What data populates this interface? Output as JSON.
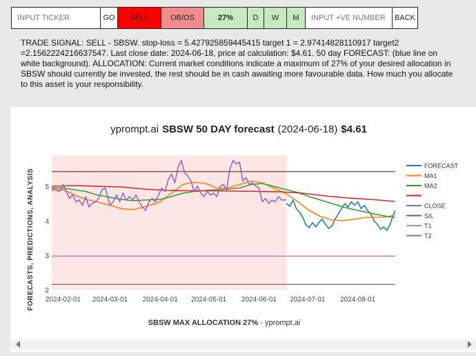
{
  "toolbar": {
    "ticker_placeholder": "INPUT TICKER",
    "go_label": "GO",
    "sell_label": "SELL",
    "obos_label": "OB/OS",
    "allocation_label": "27%",
    "d_label": "D",
    "w_label": "W",
    "m_label": "M",
    "number_placeholder": "INPUT +VE NUMBER",
    "back_label": "BACK",
    "colors": {
      "sell": "#ff0000",
      "obos": "#f08c8c",
      "allocation": "#c7e9c0",
      "dwm": "#c7e9c0",
      "white": "#ffffff"
    }
  },
  "signal_text": "TRADE SIGNAL: SELL - SBSW. stop-loss = 5.427925859445415 target 1 = 2.97414828110917 target2 =2.1562224216637547. Last close date: 2024-06-18, price at calculation: $4.61. 50 day FORECAST: (blue line on white background). ALLOCATION: Current market conditions indicate a maximum of 27% of your desired allocation in SBSW should currently be invested, the rest should be in cash awaiting more favourable data. How much you allocate to this asset is your responsibility.",
  "chart": {
    "title_site": "yprompt.ai",
    "title_main": "SBSW 50 DAY forecast",
    "title_date": "(2024-06-18)",
    "title_price": "$4.61",
    "ylabel": "FORECASTS, PREDICTIONS, ANALYSIS",
    "xlabel_bold": "SBSW MAX ALLOCATION 27%",
    "xlabel_rest": " - yprompt.ai"
  },
  "chart_data": {
    "type": "line",
    "x_range": [
      "2024-01-25",
      "2024-08-25"
    ],
    "ylim": [
      2.0,
      5.9
    ],
    "y_ticks": [
      2,
      3,
      4,
      5
    ],
    "x_ticks": [
      "2024-02-01",
      "2024-03-01",
      "2024-04-01",
      "2024-05-01",
      "2024-06-01",
      "2024-07-01",
      "2024-08-01"
    ],
    "history_shading": {
      "from": "2024-01-25",
      "to": "2024-06-18",
      "color": "#fde6e6"
    },
    "grid": false,
    "legend_position": "right",
    "series": [
      {
        "name": "FORECAST",
        "color": "#1f77b4",
        "points": [
          [
            "2024-06-18",
            4.5
          ],
          [
            "2024-06-20",
            4.42
          ],
          [
            "2024-06-22",
            4.6
          ],
          [
            "2024-06-24",
            4.35
          ],
          [
            "2024-06-26",
            4.25
          ],
          [
            "2024-06-28",
            4.1
          ],
          [
            "2024-06-30",
            3.88
          ],
          [
            "2024-07-02",
            3.8
          ],
          [
            "2024-07-04",
            3.95
          ],
          [
            "2024-07-06",
            3.82
          ],
          [
            "2024-07-08",
            3.95
          ],
          [
            "2024-07-10",
            4.05
          ],
          [
            "2024-07-12",
            3.9
          ],
          [
            "2024-07-14",
            3.78
          ],
          [
            "2024-07-16",
            3.85
          ],
          [
            "2024-07-18",
            4.05
          ],
          [
            "2024-07-20",
            4.2
          ],
          [
            "2024-07-22",
            4.35
          ],
          [
            "2024-07-24",
            4.5
          ],
          [
            "2024-07-26",
            4.4
          ],
          [
            "2024-07-28",
            4.55
          ],
          [
            "2024-07-30",
            4.45
          ],
          [
            "2024-08-01",
            4.55
          ],
          [
            "2024-08-03",
            4.35
          ],
          [
            "2024-08-05",
            4.45
          ],
          [
            "2024-08-07",
            4.3
          ],
          [
            "2024-08-09",
            4.2
          ],
          [
            "2024-08-11",
            4.0
          ],
          [
            "2024-08-13",
            3.9
          ],
          [
            "2024-08-15",
            3.75
          ],
          [
            "2024-08-17",
            3.82
          ],
          [
            "2024-08-19",
            3.72
          ],
          [
            "2024-08-21",
            3.9
          ],
          [
            "2024-08-22",
            4.05
          ],
          [
            "2024-08-24",
            4.3
          ]
        ]
      },
      {
        "name": "MA1",
        "color": "#ff7f0e",
        "points": [
          [
            "2024-01-25",
            4.88
          ],
          [
            "2024-02-01",
            4.9
          ],
          [
            "2024-02-08",
            4.75
          ],
          [
            "2024-02-15",
            4.62
          ],
          [
            "2024-02-22",
            4.55
          ],
          [
            "2024-03-01",
            4.45
          ],
          [
            "2024-03-08",
            4.35
          ],
          [
            "2024-03-15",
            4.32
          ],
          [
            "2024-03-22",
            4.4
          ],
          [
            "2024-04-01",
            4.55
          ],
          [
            "2024-04-08",
            4.8
          ],
          [
            "2024-04-15",
            5.05
          ],
          [
            "2024-04-22",
            5.12
          ],
          [
            "2024-04-29",
            5.08
          ],
          [
            "2024-05-06",
            4.95
          ],
          [
            "2024-05-13",
            4.95
          ],
          [
            "2024-05-20",
            5.05
          ],
          [
            "2024-05-27",
            5.15
          ],
          [
            "2024-06-03",
            5.1
          ],
          [
            "2024-06-10",
            4.95
          ],
          [
            "2024-06-18",
            4.78
          ],
          [
            "2024-06-25",
            4.55
          ],
          [
            "2024-07-02",
            4.3
          ],
          [
            "2024-07-09",
            4.12
          ],
          [
            "2024-07-16",
            4.02
          ],
          [
            "2024-07-23",
            4.0
          ],
          [
            "2024-07-30",
            4.05
          ],
          [
            "2024-08-06",
            4.1
          ],
          [
            "2024-08-13",
            4.1
          ],
          [
            "2024-08-20",
            4.12
          ],
          [
            "2024-08-24",
            4.18
          ]
        ]
      },
      {
        "name": "MA2",
        "color": "#2ca02c",
        "points": [
          [
            "2024-01-25",
            4.95
          ],
          [
            "2024-02-01",
            4.95
          ],
          [
            "2024-02-08",
            4.9
          ],
          [
            "2024-02-15",
            4.85
          ],
          [
            "2024-02-22",
            4.75
          ],
          [
            "2024-03-01",
            4.68
          ],
          [
            "2024-03-08",
            4.62
          ],
          [
            "2024-03-15",
            4.58
          ],
          [
            "2024-03-22",
            4.6
          ],
          [
            "2024-04-01",
            4.62
          ],
          [
            "2024-04-08",
            4.7
          ],
          [
            "2024-04-15",
            4.8
          ],
          [
            "2024-04-22",
            4.85
          ],
          [
            "2024-04-29",
            4.88
          ],
          [
            "2024-05-06",
            4.9
          ],
          [
            "2024-05-13",
            4.92
          ],
          [
            "2024-05-20",
            4.95
          ],
          [
            "2024-05-27",
            5.05
          ],
          [
            "2024-06-03",
            5.08
          ],
          [
            "2024-06-10",
            5.0
          ],
          [
            "2024-06-18",
            4.9
          ],
          [
            "2024-06-25",
            4.82
          ],
          [
            "2024-07-02",
            4.7
          ],
          [
            "2024-07-09",
            4.6
          ],
          [
            "2024-07-16",
            4.5
          ],
          [
            "2024-07-23",
            4.4
          ],
          [
            "2024-07-30",
            4.32
          ],
          [
            "2024-08-06",
            4.25
          ],
          [
            "2024-08-13",
            4.18
          ],
          [
            "2024-08-20",
            4.12
          ],
          [
            "2024-08-24",
            4.1
          ]
        ]
      },
      {
        "name": "",
        "color": "#d62728",
        "points": [
          [
            "2024-01-25",
            5.0
          ],
          [
            "2024-02-08",
            5.02
          ],
          [
            "2024-02-22",
            5.0
          ],
          [
            "2024-03-08",
            4.98
          ],
          [
            "2024-03-22",
            4.92
          ],
          [
            "2024-04-05",
            4.88
          ],
          [
            "2024-04-19",
            4.87
          ],
          [
            "2024-05-03",
            4.87
          ],
          [
            "2024-05-17",
            4.86
          ],
          [
            "2024-05-31",
            4.85
          ],
          [
            "2024-06-14",
            4.84
          ],
          [
            "2024-06-28",
            4.8
          ],
          [
            "2024-07-12",
            4.72
          ],
          [
            "2024-07-26",
            4.66
          ],
          [
            "2024-08-09",
            4.62
          ],
          [
            "2024-08-24",
            4.56
          ]
        ]
      },
      {
        "name": "CLOSE",
        "color": "#9467bd",
        "points": [
          [
            "2024-01-25",
            4.9
          ],
          [
            "2024-01-27",
            4.95
          ],
          [
            "2024-01-29",
            4.85
          ],
          [
            "2024-01-31",
            4.9
          ],
          [
            "2024-02-01",
            5.05
          ],
          [
            "2024-02-03",
            4.85
          ],
          [
            "2024-02-05",
            4.65
          ],
          [
            "2024-02-07",
            4.75
          ],
          [
            "2024-02-09",
            4.55
          ],
          [
            "2024-02-11",
            4.6
          ],
          [
            "2024-02-13",
            4.45
          ],
          [
            "2024-02-15",
            4.7
          ],
          [
            "2024-02-17",
            4.4
          ],
          [
            "2024-02-19",
            4.5
          ],
          [
            "2024-02-21",
            4.55
          ],
          [
            "2024-02-23",
            4.65
          ],
          [
            "2024-02-25",
            4.9
          ],
          [
            "2024-02-27",
            4.95
          ],
          [
            "2024-03-01",
            4.45
          ],
          [
            "2024-03-03",
            4.55
          ],
          [
            "2024-03-05",
            4.75
          ],
          [
            "2024-03-07",
            4.55
          ],
          [
            "2024-03-09",
            4.8
          ],
          [
            "2024-03-11",
            4.6
          ],
          [
            "2024-03-13",
            4.7
          ],
          [
            "2024-03-15",
            4.6
          ],
          [
            "2024-03-17",
            4.75
          ],
          [
            "2024-03-19",
            4.55
          ],
          [
            "2024-03-21",
            4.4
          ],
          [
            "2024-03-23",
            4.3
          ],
          [
            "2024-03-25",
            4.55
          ],
          [
            "2024-03-27",
            4.65
          ],
          [
            "2024-03-29",
            4.55
          ],
          [
            "2024-03-31",
            4.75
          ],
          [
            "2024-04-02",
            4.95
          ],
          [
            "2024-04-04",
            4.85
          ],
          [
            "2024-04-06",
            5.2
          ],
          [
            "2024-04-08",
            5.35
          ],
          [
            "2024-04-10",
            5.1
          ],
          [
            "2024-04-12",
            5.55
          ],
          [
            "2024-04-14",
            5.75
          ],
          [
            "2024-04-16",
            5.4
          ],
          [
            "2024-04-18",
            5.3
          ],
          [
            "2024-04-20",
            5.15
          ],
          [
            "2024-04-22",
            4.85
          ],
          [
            "2024-04-24",
            5.0
          ],
          [
            "2024-04-26",
            4.8
          ],
          [
            "2024-04-28",
            4.7
          ],
          [
            "2024-04-30",
            4.85
          ],
          [
            "2024-05-02",
            4.75
          ],
          [
            "2024-05-04",
            4.8
          ],
          [
            "2024-05-06",
            4.7
          ],
          [
            "2024-05-08",
            5.0
          ],
          [
            "2024-05-10",
            5.05
          ],
          [
            "2024-05-12",
            4.9
          ],
          [
            "2024-05-14",
            5.5
          ],
          [
            "2024-05-16",
            5.75
          ],
          [
            "2024-05-18",
            5.65
          ],
          [
            "2024-05-20",
            5.7
          ],
          [
            "2024-05-22",
            5.15
          ],
          [
            "2024-05-24",
            5.25
          ],
          [
            "2024-05-26",
            5.05
          ],
          [
            "2024-05-28",
            5.1
          ],
          [
            "2024-05-30",
            5.0
          ],
          [
            "2024-06-01",
            4.95
          ],
          [
            "2024-06-03",
            4.55
          ],
          [
            "2024-06-05",
            4.65
          ],
          [
            "2024-06-07",
            4.5
          ],
          [
            "2024-06-09",
            4.6
          ],
          [
            "2024-06-11",
            4.55
          ],
          [
            "2024-06-13",
            4.7
          ],
          [
            "2024-06-15",
            4.6
          ],
          [
            "2024-06-18",
            4.61
          ]
        ]
      },
      {
        "name": "S/L",
        "color": "#8c564b",
        "constant": 5.427925859445415
      },
      {
        "name": "T1",
        "color": "#e377c2",
        "constant": 2.97414828110917
      },
      {
        "name": "T2",
        "color": "#7f7f7f",
        "constant": 2.1562224216637547
      }
    ]
  }
}
